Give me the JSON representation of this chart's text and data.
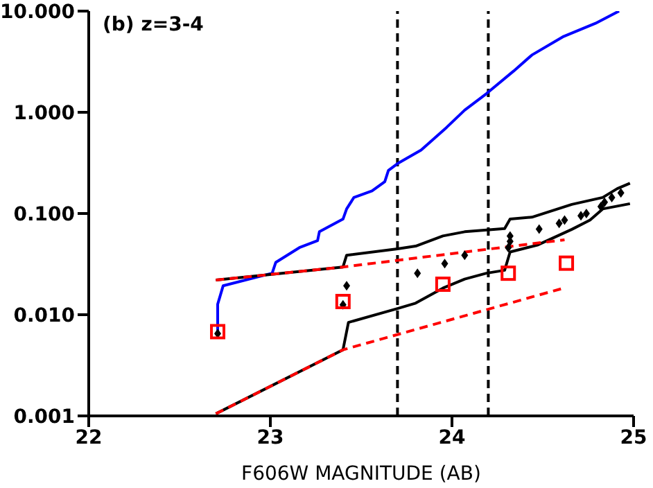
{
  "chart_data": {
    "type": "line",
    "xlabel": "F606W MAGNITUDE (AB)",
    "annotations": [
      "(b) z=3-4"
    ],
    "log": "y",
    "xlim": [
      22,
      25
    ],
    "xticks": [
      22,
      23,
      24,
      25
    ],
    "ylim": [
      0.001,
      10
    ],
    "yticks": [
      {
        "value": 0.001,
        "label": "0.001"
      },
      {
        "value": 0.01,
        "label": "0.010"
      },
      {
        "value": 0.1,
        "label": "0.100"
      },
      {
        "value": 1,
        "label": "1.000"
      },
      {
        "value": 10,
        "label": "10.000"
      }
    ],
    "grid": false,
    "ref_lines": [
      {
        "axis": "x",
        "value": 23.7,
        "color": "#000000",
        "line_style": "dashed"
      },
      {
        "axis": "x",
        "value": 24.2,
        "color": "#000000",
        "line_style": "dashed"
      }
    ],
    "series": [
      {
        "color": "#0000ff",
        "line_style": "solid",
        "marker": "none",
        "x": [
          22.71,
          22.71,
          22.74,
          23.01,
          23.03,
          23.16,
          23.26,
          23.27,
          23.4,
          23.42,
          23.46,
          23.56,
          23.63,
          23.65,
          23.7,
          23.83,
          23.9,
          23.97,
          24.07,
          24.19,
          24.34,
          24.44,
          24.61,
          24.79,
          24.92
        ],
        "values": [
          0.0065,
          0.0127,
          0.0193,
          0.0257,
          0.0329,
          0.046,
          0.054,
          0.066,
          0.088,
          0.111,
          0.144,
          0.167,
          0.206,
          0.266,
          0.311,
          0.424,
          0.547,
          0.708,
          1.05,
          1.53,
          2.56,
          3.68,
          5.56,
          7.57,
          10
        ]
      },
      {
        "color": "#000000",
        "line_style": "solid",
        "marker": "none",
        "x": [
          22.7,
          23.4,
          23.42,
          23.7,
          23.8,
          23.95,
          24.07,
          24.29,
          24.32,
          24.44,
          24.66,
          24.83,
          24.91,
          24.98
        ],
        "values": [
          0.022,
          0.0296,
          0.0387,
          0.0448,
          0.0476,
          0.06,
          0.066,
          0.071,
          0.088,
          0.092,
          0.123,
          0.144,
          0.176,
          0.199
        ]
      },
      {
        "color": "#000000",
        "line_style": "solid",
        "marker": "none",
        "x": [
          22.7,
          23.4,
          23.43,
          23.7,
          23.8,
          23.95,
          24.07,
          24.19,
          24.29,
          24.32,
          24.47,
          24.66,
          24.76,
          24.83,
          24.98
        ],
        "values": [
          0.00105,
          0.0045,
          0.0084,
          0.0115,
          0.013,
          0.0183,
          0.0225,
          0.0257,
          0.0275,
          0.0417,
          0.0487,
          0.0697,
          0.086,
          0.111,
          0.125
        ]
      },
      {
        "color": "#ff0000",
        "line_style": "dashed",
        "marker": "none",
        "x": [
          22.7,
          23.4,
          24.62
        ],
        "values": [
          0.022,
          0.0296,
          0.055
        ]
      },
      {
        "color": "#ff0000",
        "line_style": "dashed",
        "marker": "none",
        "x": [
          22.7,
          23.4,
          24.6
        ],
        "values": [
          0.00105,
          0.0045,
          0.018
        ]
      },
      {
        "type": "scatter",
        "color": "#000000",
        "marker": "diamond",
        "x": [
          22.71,
          23.4,
          23.42,
          23.81,
          23.96,
          24.07,
          24.31,
          24.32,
          24.32,
          24.48,
          24.59,
          24.62,
          24.71,
          24.74,
          24.82,
          24.84,
          24.88,
          24.93
        ],
        "values": [
          0.0065,
          0.0125,
          0.0193,
          0.0257,
          0.032,
          0.0387,
          0.046,
          0.053,
          0.06,
          0.07,
          0.08,
          0.086,
          0.095,
          0.1,
          0.117,
          0.129,
          0.144,
          0.16
        ]
      },
      {
        "type": "scatter",
        "color": "#ff0000",
        "marker": "square",
        "x": [
          22.71,
          23.4,
          23.95,
          24.31,
          24.63
        ],
        "values": [
          0.0068,
          0.0135,
          0.02,
          0.0257,
          0.0323
        ]
      }
    ]
  }
}
